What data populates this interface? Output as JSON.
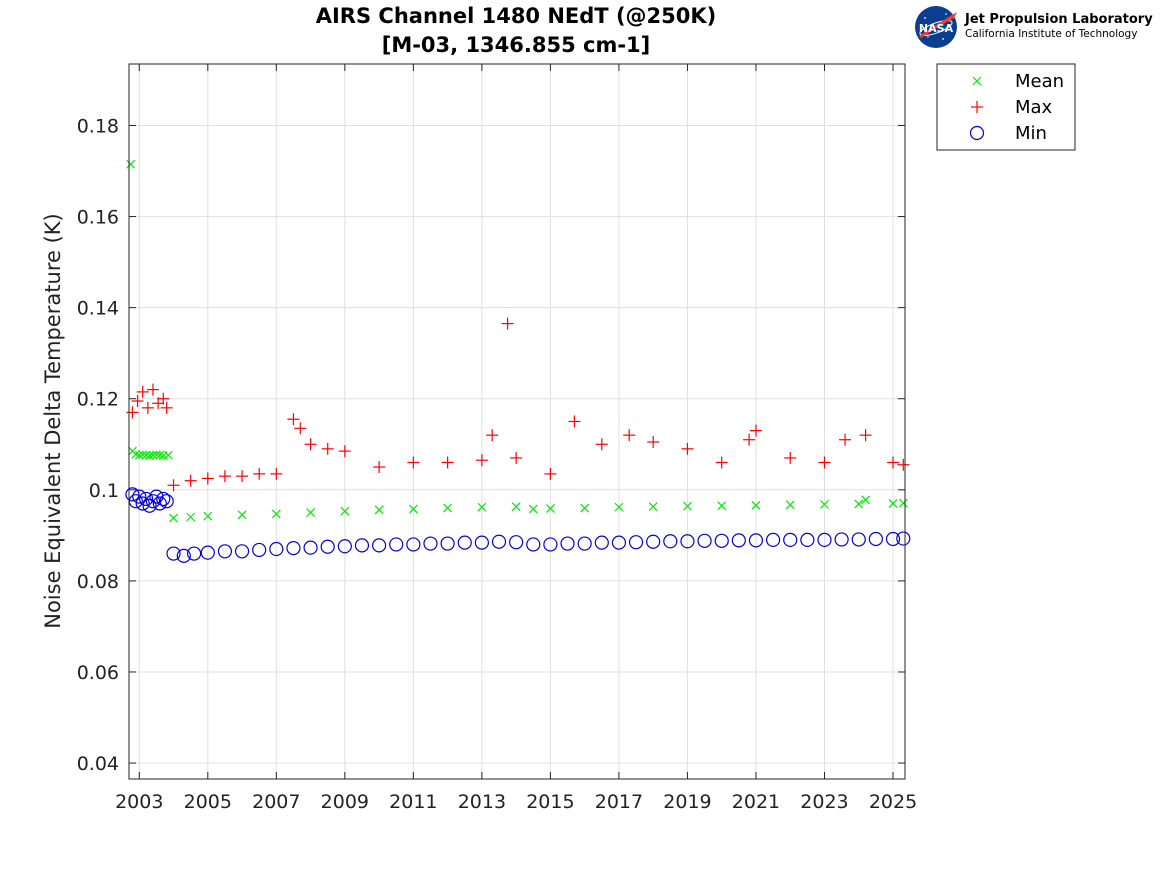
{
  "logo": {
    "nasa": "NASA",
    "name": "Jet Propulsion Laboratory",
    "subtitle": "California Institute of Technology"
  },
  "chart_data": {
    "type": "scatter",
    "title": "AIRS Channel 1480 NEdT (@250K)",
    "subtitle": "[M-03, 1346.855 cm-1]",
    "xlabel": "",
    "ylabel": "Noise Equivalent Delta Temperature (K)",
    "xlim": [
      2002.7,
      2025.35
    ],
    "ylim": [
      0.0365,
      0.1935
    ],
    "xticks": [
      2003,
      2005,
      2007,
      2009,
      2011,
      2013,
      2015,
      2017,
      2019,
      2021,
      2023,
      2025
    ],
    "yticks": [
      0.04,
      0.06,
      0.08,
      0.1,
      0.12,
      0.14,
      0.16,
      0.18
    ],
    "grid": true,
    "legend_position": "outside-top-right",
    "legend": [
      {
        "label": "Mean",
        "marker": "x",
        "color": "#00ee00"
      },
      {
        "label": "Max",
        "marker": "+",
        "color": "#ff0000"
      },
      {
        "label": "Min",
        "marker": "o",
        "color": "#0000dd"
      }
    ],
    "series": [
      {
        "name": "Mean",
        "marker": "x",
        "color": "#00ee00",
        "x": [
          2002.75,
          2002.8,
          2002.9,
          2003.0,
          2003.1,
          2003.2,
          2003.3,
          2003.4,
          2003.5,
          2003.6,
          2003.7,
          2003.85,
          2004.0,
          2004.5,
          2005.0,
          2006.0,
          2007.0,
          2008.0,
          2009.0,
          2010.0,
          2011.0,
          2012.0,
          2013.0,
          2014.0,
          2014.5,
          2015.0,
          2016.0,
          2017.0,
          2018.0,
          2019.0,
          2020.0,
          2021.0,
          2022.0,
          2023.0,
          2024.0,
          2024.2,
          2025.0,
          2025.3
        ],
        "y": [
          0.1715,
          0.1085,
          0.1078,
          0.1076,
          0.1077,
          0.1076,
          0.1075,
          0.1076,
          0.1077,
          0.1076,
          0.1075,
          0.1076,
          0.0938,
          0.094,
          0.0942,
          0.0945,
          0.0947,
          0.095,
          0.0953,
          0.0956,
          0.0958,
          0.096,
          0.0962,
          0.0963,
          0.0958,
          0.0959,
          0.096,
          0.0962,
          0.0963,
          0.0964,
          0.0965,
          0.0966,
          0.0967,
          0.0968,
          0.0969,
          0.0978,
          0.097,
          0.0971
        ]
      },
      {
        "name": "Max",
        "marker": "+",
        "color": "#ff0000",
        "x": [
          2002.8,
          2002.95,
          2003.1,
          2003.25,
          2003.4,
          2003.55,
          2003.7,
          2003.8,
          2004.0,
          2004.5,
          2005.0,
          2005.5,
          2006.0,
          2006.5,
          2007.0,
          2007.5,
          2007.7,
          2008.0,
          2008.5,
          2009.0,
          2010.0,
          2011.0,
          2012.0,
          2013.0,
          2013.3,
          2013.75,
          2014.0,
          2015.0,
          2015.7,
          2016.5,
          2017.3,
          2018.0,
          2019.0,
          2020.0,
          2020.8,
          2021.0,
          2022.0,
          2023.0,
          2023.6,
          2024.2,
          2025.0,
          2025.3
        ],
        "y": [
          0.117,
          0.1195,
          0.1215,
          0.118,
          0.122,
          0.119,
          0.12,
          0.118,
          0.101,
          0.102,
          0.1025,
          0.103,
          0.103,
          0.1035,
          0.1035,
          0.1155,
          0.1135,
          0.11,
          0.109,
          0.1085,
          0.105,
          0.106,
          0.106,
          0.1065,
          0.112,
          0.1365,
          0.107,
          0.1035,
          0.115,
          0.11,
          0.112,
          0.1105,
          0.109,
          0.106,
          0.111,
          0.113,
          0.107,
          0.106,
          0.111,
          0.112,
          0.106,
          0.1055
        ]
      },
      {
        "name": "Min",
        "marker": "o",
        "color": "#0000dd",
        "x": [
          2002.8,
          2002.9,
          2003.0,
          2003.1,
          2003.2,
          2003.3,
          2003.4,
          2003.5,
          2003.6,
          2003.7,
          2003.8,
          2004.0,
          2004.3,
          2004.6,
          2005.0,
          2005.5,
          2006.0,
          2006.5,
          2007.0,
          2007.5,
          2008.0,
          2008.5,
          2009.0,
          2009.5,
          2010.0,
          2010.5,
          2011.0,
          2011.5,
          2012.0,
          2012.5,
          2013.0,
          2013.5,
          2014.0,
          2014.5,
          2015.0,
          2015.5,
          2016.0,
          2016.5,
          2017.0,
          2017.5,
          2018.0,
          2018.5,
          2019.0,
          2019.5,
          2020.0,
          2020.5,
          2021.0,
          2021.5,
          2022.0,
          2022.5,
          2023.0,
          2023.5,
          2024.0,
          2024.5,
          2025.0,
          2025.3
        ],
        "y": [
          0.099,
          0.0975,
          0.0985,
          0.097,
          0.098,
          0.0965,
          0.0975,
          0.0985,
          0.097,
          0.098,
          0.0975,
          0.086,
          0.0855,
          0.086,
          0.0862,
          0.0865,
          0.0865,
          0.0868,
          0.087,
          0.0872,
          0.0873,
          0.0875,
          0.0876,
          0.0878,
          0.0878,
          0.088,
          0.088,
          0.0882,
          0.0882,
          0.0884,
          0.0884,
          0.0886,
          0.0885,
          0.088,
          0.088,
          0.0882,
          0.0882,
          0.0884,
          0.0884,
          0.0885,
          0.0886,
          0.0887,
          0.0887,
          0.0888,
          0.0888,
          0.0889,
          0.0889,
          0.089,
          0.089,
          0.089,
          0.089,
          0.0891,
          0.0891,
          0.0892,
          0.0892,
          0.0893
        ]
      }
    ]
  }
}
